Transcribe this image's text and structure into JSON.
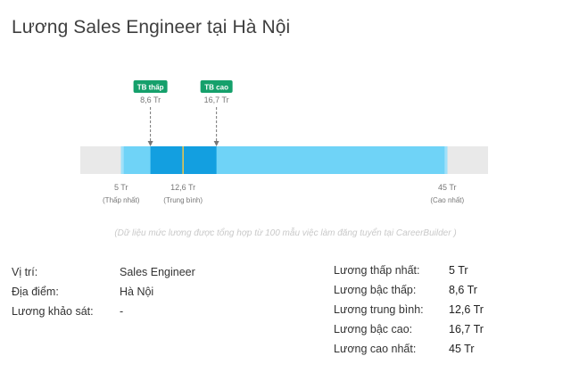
{
  "page_title": "Lương Sales Engineer tại Hà Nội",
  "chart_data": {
    "type": "range",
    "unit": "Tr",
    "scale": {
      "min": 0,
      "max": 50
    },
    "range": {
      "min": 5,
      "max": 45
    },
    "lower_quartile": 8.6,
    "average": 12.6,
    "upper_quartile": 16.7,
    "markers": [
      {
        "badge": "TB thấp",
        "value_text": "8,6 Tr",
        "value": 8.6
      },
      {
        "badge": "TB cao",
        "value_text": "16,7 Tr",
        "value": 16.7
      }
    ],
    "bottom_labels": [
      {
        "value": 5,
        "text": "5 Tr",
        "sub": "(Thấp nhất)"
      },
      {
        "value": 12.6,
        "text": "12,6 Tr",
        "sub": "(Trung bình)"
      },
      {
        "value": 45,
        "text": "45 Tr",
        "sub": "(Cao nhất)"
      }
    ],
    "colors": {
      "track": "#e9e9e9",
      "range": "#6fd3f7",
      "range_edge": "#9fe1fa",
      "core": "#139fe0",
      "average_line": "#f0c74a",
      "badge": "#15a06b",
      "dash": "#777777",
      "label": "#777777"
    }
  },
  "note": "(Dữ liệu mức lương được tổng hợp từ 100 mẫu việc làm đăng tuyển tại CareerBuilder )",
  "details_left": [
    {
      "label": "Vị trí:",
      "value": "Sales Engineer"
    },
    {
      "label": "Địa điểm:",
      "value": "Hà Nội"
    },
    {
      "label": "Lương khảo sát:",
      "value": "-"
    }
  ],
  "details_right": [
    {
      "label": "Lương thấp nhất:",
      "value": "5 Tr"
    },
    {
      "label": "Lương bậc thấp:",
      "value": "8,6 Tr"
    },
    {
      "label": "Lương trung bình:",
      "value": "12,6 Tr"
    },
    {
      "label": "Lương bậc cao:",
      "value": "16,7 Tr"
    },
    {
      "label": "Lương cao nhất:",
      "value": "45 Tr"
    }
  ]
}
